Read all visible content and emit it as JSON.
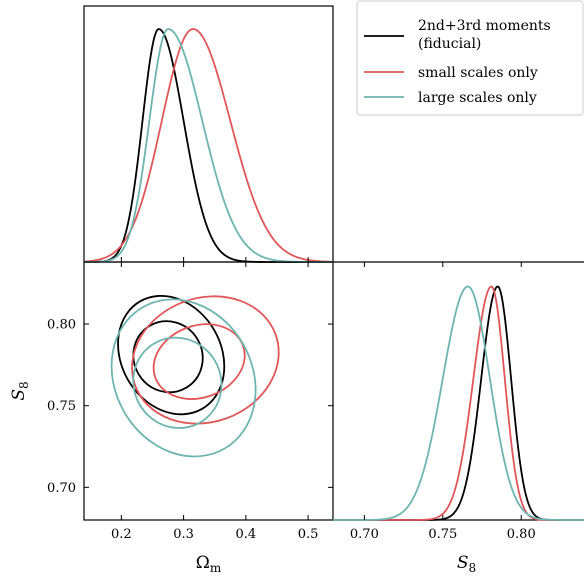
{
  "chart_data": {
    "type": "corner",
    "series": [
      {
        "name": "2nd+3rd moments (fiducial)",
        "color": "#000000",
        "omega_m": {
          "peak": 0.26,
          "sigma_left": 0.026,
          "sigma_right": 0.04
        },
        "s8": {
          "peak": 0.785,
          "sigma_left": 0.0105,
          "sigma_right": 0.0085
        },
        "contours": [
          {
            "level": "68%",
            "center": [
              0.275,
              0.78
            ],
            "axes": [
              0.055,
              0.022
            ],
            "rotation_deg": -30
          },
          {
            "level": "95%",
            "center": [
              0.28,
              0.781
            ],
            "axes": [
              0.08,
              0.038
            ],
            "rotation_deg": -30
          }
        ]
      },
      {
        "name": "small scales only",
        "color": "#e15759",
        "omega_m": {
          "peak": 0.315,
          "sigma_left": 0.05,
          "sigma_right": 0.06
        },
        "s8": {
          "peak": 0.781,
          "sigma_left": 0.0115,
          "sigma_right": 0.0085
        },
        "contours": [
          {
            "level": "68%",
            "center": [
              0.325,
              0.777
            ],
            "axes": [
              0.075,
              0.022
            ],
            "rotation_deg": -20
          },
          {
            "level": "95%",
            "center": [
              0.335,
              0.778
            ],
            "axes": [
              0.12,
              0.038
            ],
            "rotation_deg": -20
          }
        ]
      },
      {
        "name": "large scales only",
        "color": "#6db5b0",
        "omega_m": {
          "peak": 0.275,
          "sigma_left": 0.03,
          "sigma_right": 0.055
        },
        "s8": {
          "peak": 0.766,
          "sigma_left": 0.016,
          "sigma_right": 0.014
        },
        "contours": [
          {
            "level": "68%",
            "center": [
              0.29,
              0.764
            ],
            "axes": [
              0.07,
              0.028
            ],
            "rotation_deg": -30
          },
          {
            "level": "95%",
            "center": [
              0.3,
              0.767
            ],
            "axes": [
              0.11,
              0.05
            ],
            "rotation_deg": -30
          }
        ]
      }
    ],
    "panels": {
      "top_left": {
        "xlim": [
          0.14,
          0.54
        ]
      },
      "bottom_left": {
        "xlim": [
          0.14,
          0.54
        ],
        "ylim": [
          0.68,
          0.838
        ],
        "xticks": [
          "0.2",
          "0.3",
          "0.4",
          "0.5"
        ],
        "yticks": [
          "0.70",
          "0.75",
          "0.80"
        ],
        "xlabel": "Ωm",
        "ylabel": "S8"
      },
      "bottom_right": {
        "xlim": [
          0.68,
          0.84
        ],
        "xticks": [
          "0.70",
          "0.75",
          "0.80"
        ],
        "xlabel": "S8"
      }
    },
    "legend": {
      "position": "top-right",
      "entries": [
        "2nd+3rd moments",
        "(fiducial)",
        "small scales only",
        "large scales only"
      ]
    }
  }
}
